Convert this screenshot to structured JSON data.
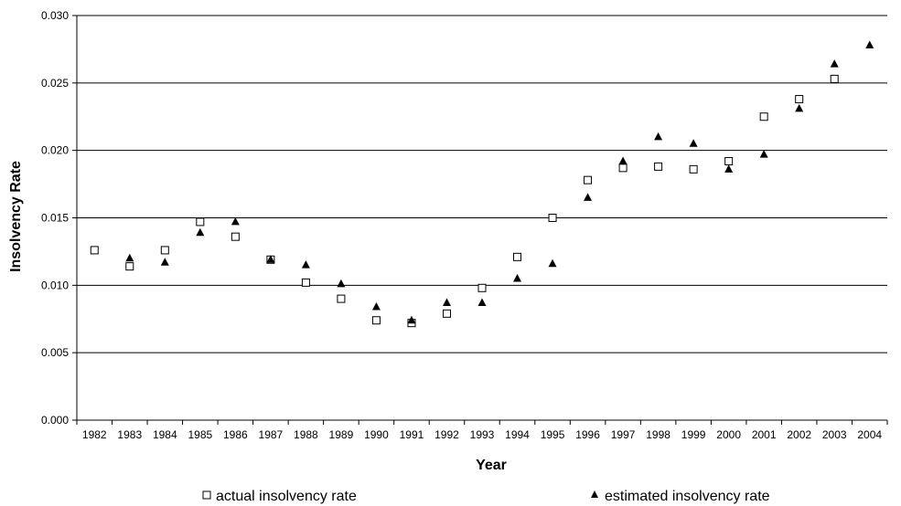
{
  "chart_data": {
    "type": "scatter",
    "title": "",
    "xlabel": "Year",
    "ylabel": "Insolvency Rate",
    "ylim": [
      0,
      0.03
    ],
    "yticks": [
      "0.000",
      "0.005",
      "0.010",
      "0.015",
      "0.020",
      "0.025",
      "0.030"
    ],
    "grid": "horizontal",
    "legend_position": "bottom",
    "categories": [
      "1982",
      "1983",
      "1984",
      "1985",
      "1986",
      "1987",
      "1988",
      "1989",
      "1990",
      "1991",
      "1992",
      "1993",
      "1994",
      "1995",
      "1996",
      "1997",
      "1998",
      "1999",
      "2000",
      "2001",
      "2002",
      "2003",
      "2004"
    ],
    "series": [
      {
        "name": "actual insolvency rate",
        "marker": "open-square",
        "color": "#000000",
        "values": [
          0.0126,
          0.0114,
          0.0126,
          0.0147,
          0.0136,
          0.0119,
          0.0102,
          0.009,
          0.0074,
          0.0072,
          0.0079,
          0.0098,
          0.0121,
          0.015,
          0.0178,
          0.0187,
          0.0188,
          0.0186,
          0.0192,
          0.0225,
          0.0238,
          0.0253,
          null
        ]
      },
      {
        "name": "estimated insolvency rate",
        "marker": "filled-triangle",
        "color": "#000000",
        "values": [
          null,
          0.012,
          0.0117,
          0.0139,
          0.0147,
          0.0119,
          0.0115,
          0.0101,
          0.0084,
          0.0074,
          0.0087,
          0.0087,
          0.0105,
          0.0116,
          0.0165,
          0.0192,
          0.021,
          0.0205,
          0.0186,
          0.0197,
          0.0231,
          0.0264,
          0.0278
        ]
      }
    ]
  }
}
